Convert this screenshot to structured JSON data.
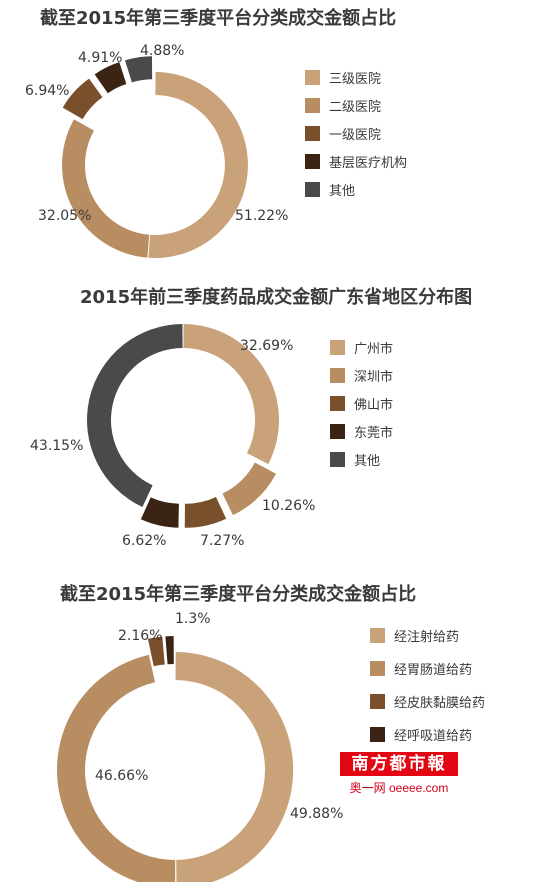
{
  "chart_data": [
    {
      "type": "pie",
      "title": "截至2015年第三季度平台分类成交金额占比",
      "categories": [
        "三级医院",
        "二级医院",
        "一级医院",
        "基层医疗机构",
        "其他"
      ],
      "values": [
        51.22,
        32.05,
        6.94,
        4.91,
        4.88
      ],
      "labels": [
        "51.22%",
        "32.05%",
        "6.94%",
        "4.91%",
        "4.88%"
      ],
      "colors": [
        "#c9a27a",
        "#b88d61",
        "#7a4f2c",
        "#3b2414",
        "#4a4a4a"
      ],
      "exploded": [
        false,
        false,
        true,
        true,
        true
      ],
      "legend_position": "right"
    },
    {
      "type": "pie",
      "title": "2015年前三季度药品成交金额广东省地区分布图",
      "categories": [
        "广州市",
        "深圳市",
        "佛山市",
        "东莞市",
        "其他"
      ],
      "values": [
        32.69,
        10.26,
        7.27,
        6.62,
        43.15
      ],
      "labels": [
        "32.69%",
        "10.26%",
        "7.27%",
        "6.62%",
        "43.15%"
      ],
      "colors": [
        "#c9a27a",
        "#b88d61",
        "#7a4f2c",
        "#3b2414",
        "#4a4a4a"
      ],
      "exploded": [
        false,
        true,
        true,
        true,
        false
      ],
      "legend_position": "right"
    },
    {
      "type": "pie",
      "title": "截至2015年第三季度平台分类成交金额占比",
      "categories": [
        "经注射给药",
        "经胃肠道给药",
        "经皮肤黏膜给药",
        "经呼吸道给药"
      ],
      "values": [
        49.88,
        46.66,
        2.16,
        1.3
      ],
      "labels": [
        "49.88%",
        "46.66%",
        "2.16%",
        "1.3%"
      ],
      "colors": [
        "#c9a27a",
        "#b88d61",
        "#7a4f2c",
        "#3b2414"
      ],
      "exploded": [
        false,
        false,
        true,
        true
      ],
      "legend_position": "right"
    }
  ],
  "badge": {
    "logo": "南方都市報",
    "sub": "奥一网 oeeee.com"
  }
}
